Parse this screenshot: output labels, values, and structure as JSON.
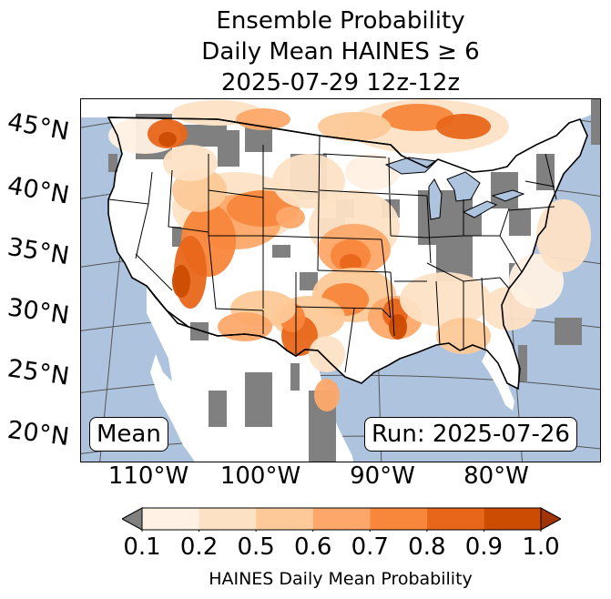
{
  "title": {
    "line1": "Ensemble Probability",
    "line2": "Daily Mean HAINES ≥ 6",
    "line3": "2025-07-29 12z-12z"
  },
  "map": {
    "region": "Contiguous United States",
    "projection": "conic",
    "colors": {
      "ocean": "#aec4de",
      "land_below_threshold": "#ffffff",
      "no_data": "#808080",
      "borders": "#000000",
      "graticule": "#555555"
    },
    "latitude_labels": [
      "45°N",
      "40°N",
      "35°N",
      "30°N",
      "25°N",
      "20°N"
    ],
    "longitude_labels": [
      "110°W",
      "100°W",
      "90°W",
      "80°W"
    ],
    "mean_label": "Mean",
    "run_label": "Run: 2025-07-26"
  },
  "colorbar": {
    "label": "HAINES Daily Mean Probability",
    "ticks": [
      "0.1",
      "0.2",
      "0.5",
      "0.6",
      "0.7",
      "0.8",
      "0.9",
      "1.0"
    ],
    "bins": [
      {
        "from": 0.1,
        "to": 0.2,
        "color": "#fff1e4"
      },
      {
        "from": 0.2,
        "to": 0.5,
        "color": "#fde1c4"
      },
      {
        "from": 0.5,
        "to": 0.6,
        "color": "#fdc998"
      },
      {
        "from": 0.6,
        "to": 0.7,
        "color": "#fda86a"
      },
      {
        "from": 0.7,
        "to": 0.8,
        "color": "#f8863b"
      },
      {
        "from": 0.8,
        "to": 0.9,
        "color": "#e8661a"
      },
      {
        "from": 0.9,
        "to": 1.0,
        "color": "#cc4c02"
      }
    ],
    "under_color": "#808080",
    "over_color": "#a13403",
    "extend": "both"
  }
}
